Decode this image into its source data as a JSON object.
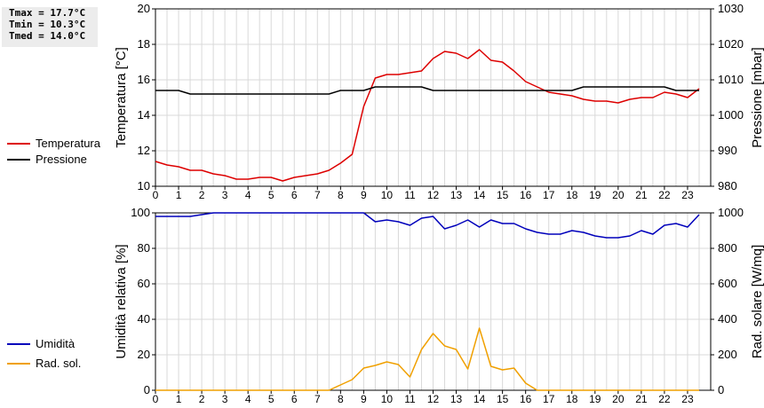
{
  "stats": [
    "Tmax = 17.7°C",
    "Tmin = 10.3°C",
    "Tmed = 14.0°C"
  ],
  "legend": {
    "top": [
      {
        "label": "Temperatura",
        "color": "#dd0000"
      },
      {
        "label": "Pressione",
        "color": "#000000"
      }
    ],
    "bottom": [
      {
        "label": "Umidità",
        "color": "#0000bb"
      },
      {
        "label": "Rad. sol.",
        "color": "#f0a000"
      }
    ]
  },
  "chart_data": [
    {
      "type": "line",
      "xlim": [
        0,
        24
      ],
      "xticks": [
        "0",
        "1",
        "2",
        "3",
        "4",
        "5",
        "6",
        "7",
        "8",
        "9",
        "10",
        "11",
        "12",
        "13",
        "14",
        "15",
        "16",
        "17",
        "18",
        "19",
        "20",
        "21",
        "22",
        "23"
      ],
      "ylabel": "Temperatura [°C]",
      "ylim": [
        10,
        20
      ],
      "yticks": [
        "10",
        "12",
        "14",
        "16",
        "18",
        "20"
      ],
      "ylabel_right": "Pressione [mbar]",
      "ylim_right": [
        980,
        1030
      ],
      "yticks_right": [
        "980",
        "990",
        "1000",
        "1010",
        "1020",
        "1030"
      ],
      "grid": true,
      "series": [
        {
          "name": "Temperatura",
          "color": "#dd0000",
          "axis": "left",
          "x": [
            0,
            0.5,
            1,
            1.5,
            2,
            2.5,
            3,
            3.5,
            4,
            4.5,
            5,
            5.5,
            6,
            6.5,
            7,
            7.5,
            8,
            8.5,
            9,
            9.5,
            10,
            10.5,
            11,
            11.5,
            12,
            12.5,
            13,
            13.5,
            14,
            14.5,
            15,
            15.5,
            16,
            16.5,
            17,
            17.5,
            18,
            18.5,
            19,
            19.5,
            20,
            20.5,
            21,
            21.5,
            22,
            22.5,
            23,
            23.5
          ],
          "values": [
            11.4,
            11.2,
            11.1,
            10.9,
            10.9,
            10.7,
            10.6,
            10.4,
            10.4,
            10.5,
            10.5,
            10.3,
            10.5,
            10.6,
            10.7,
            10.9,
            11.3,
            11.8,
            14.5,
            16.1,
            16.3,
            16.3,
            16.4,
            16.5,
            17.2,
            17.6,
            17.5,
            17.2,
            17.7,
            17.1,
            17.0,
            16.5,
            15.9,
            15.6,
            15.3,
            15.2,
            15.1,
            14.9,
            14.8,
            14.8,
            14.7,
            14.9,
            15.0,
            15.0,
            15.3,
            15.2,
            15.0,
            15.5
          ]
        },
        {
          "name": "Pressione",
          "color": "#000000",
          "axis": "right",
          "x": [
            0,
            0.5,
            1,
            1.5,
            2,
            2.5,
            3,
            3.5,
            4,
            4.5,
            5,
            5.5,
            6,
            6.5,
            7,
            7.5,
            8,
            8.5,
            9,
            9.5,
            10,
            10.5,
            11,
            11.5,
            12,
            12.5,
            13,
            13.5,
            14,
            14.5,
            15,
            15.5,
            16,
            16.5,
            17,
            17.5,
            18,
            18.5,
            19,
            19.5,
            20,
            20.5,
            21,
            21.5,
            22,
            22.5,
            23,
            23.5
          ],
          "values": [
            1007,
            1007,
            1007,
            1006,
            1006,
            1006,
            1006,
            1006,
            1006,
            1006,
            1006,
            1006,
            1006,
            1006,
            1006,
            1006,
            1007,
            1007,
            1007,
            1008,
            1008,
            1008,
            1008,
            1008,
            1007,
            1007,
            1007,
            1007,
            1007,
            1007,
            1007,
            1007,
            1007,
            1007,
            1007,
            1007,
            1007,
            1008,
            1008,
            1008,
            1008,
            1008,
            1008,
            1008,
            1008,
            1007,
            1007,
            1007
          ]
        }
      ]
    },
    {
      "type": "line",
      "xlim": [
        0,
        24
      ],
      "xticks": [
        "0",
        "1",
        "2",
        "3",
        "4",
        "5",
        "6",
        "7",
        "8",
        "9",
        "10",
        "11",
        "12",
        "13",
        "14",
        "15",
        "16",
        "17",
        "18",
        "19",
        "20",
        "21",
        "22",
        "23"
      ],
      "ylabel": "Umidità relativa [%]",
      "ylim": [
        0,
        100
      ],
      "yticks": [
        "0",
        "20",
        "40",
        "60",
        "80",
        "100"
      ],
      "ylabel_right": "Rad. solare [W/mq]",
      "ylim_right": [
        0,
        1000
      ],
      "yticks_right": [
        "0",
        "200",
        "400",
        "600",
        "800",
        "1000"
      ],
      "grid": true,
      "series": [
        {
          "name": "Umidità",
          "color": "#0000bb",
          "axis": "left",
          "x": [
            0,
            0.5,
            1,
            1.5,
            2,
            2.5,
            3,
            3.5,
            4,
            4.5,
            5,
            5.5,
            6,
            6.5,
            7,
            7.5,
            8,
            8.5,
            9,
            9.5,
            10,
            10.5,
            11,
            11.5,
            12,
            12.5,
            13,
            13.5,
            14,
            14.5,
            15,
            15.5,
            16,
            16.5,
            17,
            17.5,
            18,
            18.5,
            19,
            19.5,
            20,
            20.5,
            21,
            21.5,
            22,
            22.5,
            23,
            23.5
          ],
          "values": [
            98,
            98,
            98,
            98,
            99,
            100,
            100,
            100,
            100,
            100,
            100,
            100,
            100,
            100,
            100,
            100,
            100,
            100,
            100,
            95,
            96,
            95,
            93,
            97,
            98,
            91,
            93,
            96,
            92,
            96,
            94,
            94,
            91,
            89,
            88,
            88,
            90,
            89,
            87,
            86,
            86,
            87,
            90,
            88,
            93,
            94,
            92,
            99
          ]
        },
        {
          "name": "Rad. sol.",
          "color": "#f0a000",
          "axis": "right",
          "x": [
            0,
            0.5,
            1,
            1.5,
            2,
            2.5,
            3,
            3.5,
            4,
            4.5,
            5,
            5.5,
            6,
            6.5,
            7,
            7.5,
            8,
            8.5,
            9,
            9.5,
            10,
            10.5,
            11,
            11.5,
            12,
            12.5,
            13,
            13.5,
            14,
            14.5,
            15,
            15.5,
            16,
            16.5,
            17,
            17.5,
            18,
            18.5,
            19,
            19.5,
            20,
            20.5,
            21,
            21.5,
            22,
            22.5,
            23,
            23.5
          ],
          "values": [
            0,
            0,
            0,
            0,
            0,
            0,
            0,
            0,
            0,
            0,
            0,
            0,
            0,
            0,
            0,
            0,
            30,
            60,
            125,
            140,
            160,
            145,
            75,
            230,
            320,
            250,
            230,
            120,
            350,
            135,
            115,
            125,
            40,
            0,
            0,
            0,
            0,
            0,
            0,
            0,
            0,
            0,
            0,
            0,
            0,
            0,
            0,
            0
          ]
        }
      ]
    }
  ]
}
